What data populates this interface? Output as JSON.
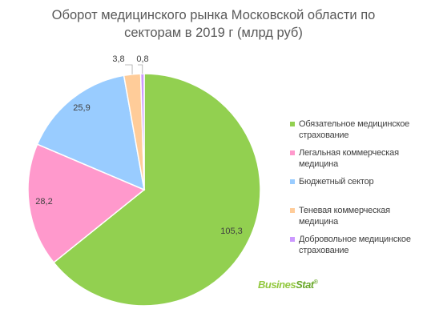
{
  "chart_data": {
    "type": "pie",
    "title": "Оборот медицинского рынка Московской области по секторам в 2019 г (млрд руб)",
    "title_lines": [
      "Оборот медицинского  рынка Московской области по",
      "секторам в 2019 г (млрд руб)"
    ],
    "start_angle": "12 o'clock",
    "direction": "clockwise",
    "slices": [
      {
        "label": "Обязательное медицинское страхование",
        "value": 105.3,
        "value_label": "105,3",
        "color": "#92d050"
      },
      {
        "label": "Легальная коммерческая медицина",
        "value": 28.2,
        "value_label": "28,2",
        "color": "#ff99cc"
      },
      {
        "label": "Бюджетный сектор",
        "value": 25.9,
        "value_label": "25,9",
        "color": "#99ccff"
      },
      {
        "label": "Теневая коммерческая медицина",
        "value": 3.8,
        "value_label": "3,8",
        "color": "#ffcc99"
      },
      {
        "label": "Добровольное медицинское страхование",
        "value": 0.8,
        "value_label": "0,8",
        "color": "#cc99ff"
      }
    ],
    "legend": {
      "placement": "right",
      "items": [
        [
          "Обязательное медицинское",
          "страхование"
        ],
        [
          "Легальная коммерческая",
          "медицина"
        ],
        [
          "Бюджетный сектор"
        ],
        [
          "Теневая коммерческая",
          "медицина"
        ],
        [
          "Добровольное медицинское",
          "страхование"
        ]
      ]
    }
  },
  "brand": {
    "part1": "Busines",
    "part2": "Stat",
    "mark": "®"
  }
}
